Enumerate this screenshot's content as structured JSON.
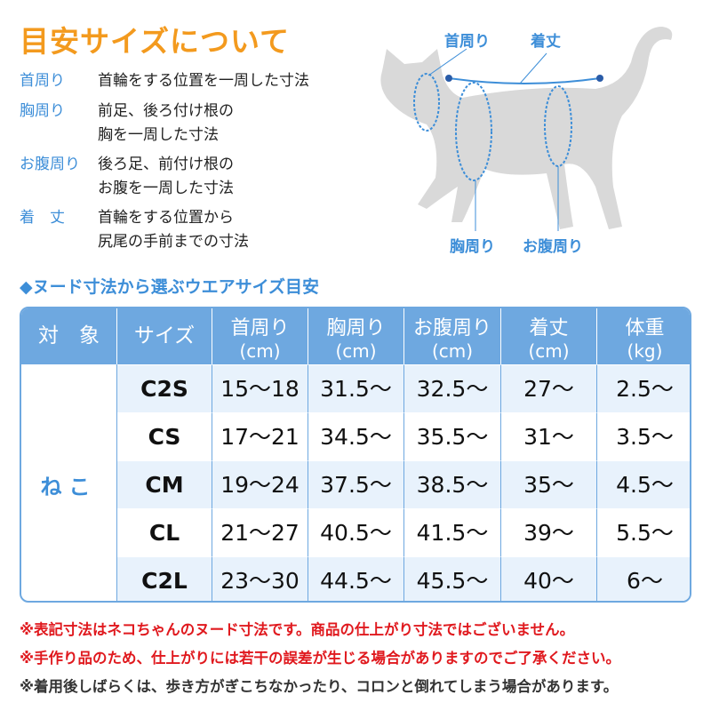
{
  "title": "目安サイズについて",
  "definitions": [
    {
      "term": "首周り",
      "desc": [
        "首輪をする位置を一周した寸法"
      ]
    },
    {
      "term": "胸周り",
      "desc": [
        "前足、後ろ付け根の",
        "胸を一周した寸法"
      ]
    },
    {
      "term": "お腹周り",
      "desc": [
        "後ろ足、前付け根の",
        "お腹を一周した寸法"
      ]
    },
    {
      "term": "着　丈",
      "desc": [
        "首輪をする位置から",
        "尻尾の手前までの寸法"
      ]
    }
  ],
  "diagram_labels": {
    "neck": "首周り",
    "length": "着丈",
    "chest": "胸周り",
    "belly": "お腹周り"
  },
  "section_title": "◆ヌード寸法から選ぶウエアサイズ目安",
  "table": {
    "headers": [
      [
        "対　象",
        ""
      ],
      [
        "サイズ",
        ""
      ],
      [
        "首周り",
        "(cm)"
      ],
      [
        "胸周り",
        "(cm)"
      ],
      [
        "お腹周り",
        "(cm)"
      ],
      [
        "着丈",
        "(cm)"
      ],
      [
        "体重",
        "(kg)"
      ]
    ],
    "target": "ねこ",
    "rows": [
      [
        "C2S",
        "15〜18",
        "31.5〜",
        "32.5〜",
        "27〜",
        "2.5〜"
      ],
      [
        "CS",
        "17〜21",
        "34.5〜",
        "35.5〜",
        "31〜",
        "3.5〜"
      ],
      [
        "CM",
        "19〜24",
        "37.5〜",
        "38.5〜",
        "35〜",
        "4.5〜"
      ],
      [
        "CL",
        "21〜27",
        "40.5〜",
        "41.5〜",
        "39〜",
        "5.5〜"
      ],
      [
        "C2L",
        "23〜30",
        "44.5〜",
        "45.5〜",
        "40〜",
        "6〜"
      ]
    ]
  },
  "notes": [
    {
      "text": "※表記寸法はネコちゃんのヌード寸法です。商品の仕上がり寸法ではございません。",
      "color": "#e0191e"
    },
    {
      "text": "※手作り品のため、仕上がりには若干の誤差が生じる場合がありますのでご了承ください。",
      "color": "#e0191e"
    },
    {
      "text": "※着用後しばらくは、歩き方がぎこちなかったり、コロンと倒れてしまう場合があります。",
      "color": "#333333"
    }
  ],
  "colors": {
    "accent": "#3d8ed8",
    "header": "#6ea8e0",
    "title": "#f39a1e"
  }
}
